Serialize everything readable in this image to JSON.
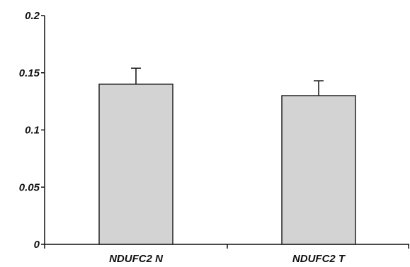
{
  "chart_data": {
    "type": "bar",
    "categories": [
      "NDUFC2 N",
      "NDUFC2 T"
    ],
    "values": [
      0.14,
      0.13
    ],
    "errors": [
      0.014,
      0.013
    ],
    "ylim": [
      0,
      0.2
    ],
    "y_ticks": [
      0,
      0.05,
      0.1,
      0.15,
      0.2
    ],
    "y_tick_labels": [
      "0",
      "0.05",
      "0.1",
      "0.15",
      "0.2"
    ],
    "grid": false,
    "bar_color": "#d3d3d3",
    "bar_edge_color": "#222222"
  }
}
